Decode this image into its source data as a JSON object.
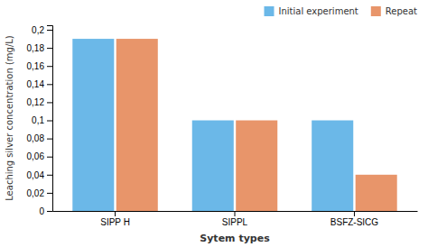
{
  "chart_data": {
    "type": "bar",
    "categories": [
      "SIPP H",
      "SIPPL",
      "BSFZ-SICG"
    ],
    "series": [
      {
        "name": "Initial experiment",
        "color": "#6BB8E8",
        "values": [
          0.19,
          0.1,
          0.1
        ]
      },
      {
        "name": "Repeat",
        "color": "#E8956A",
        "values": [
          0.19,
          0.1,
          0.04
        ]
      }
    ],
    "xlabel": "Sytem types",
    "ylabel": "Leaching silver concentration (mg/L)",
    "ylim": [
      0,
      0.205
    ],
    "yticks": [
      0,
      {
        "value": 0.02,
        "label": "0,02"
      },
      {
        "value": 0.04,
        "label": "0,04"
      },
      {
        "value": 0.06,
        "label": "0,06"
      },
      {
        "value": 0.08,
        "label": "0,08"
      },
      {
        "value": 0.1,
        "label": "0,1"
      },
      {
        "value": 0.12,
        "label": "0,12"
      },
      {
        "value": 0.14,
        "label": "0,14"
      },
      {
        "value": 0.16,
        "label": "0,16"
      },
      {
        "value": 0.18,
        "label": "0,18"
      },
      {
        "value": 0.2,
        "label": "0,2"
      }
    ],
    "grid": false,
    "legend": "upper right"
  }
}
